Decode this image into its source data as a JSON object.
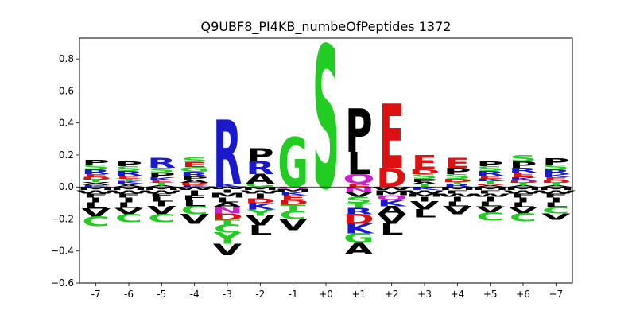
{
  "chart_data": {
    "type": "sequence-logo",
    "title": "Q9UBF8_PI4KB_numbeOfPeptides 1372",
    "xlabel": "",
    "ylabel": "",
    "ylim": [
      -0.6,
      0.93
    ],
    "yticks": [
      "0.8",
      "0.6",
      "0.4",
      "0.2",
      "0.0",
      "−0.2",
      "−0.4",
      "−0.6"
    ],
    "ytick_values": [
      0.8,
      0.6,
      0.4,
      0.2,
      0.0,
      -0.2,
      -0.4,
      -0.6
    ],
    "categories": [
      "-7",
      "-6",
      "-5",
      "-4",
      "-3",
      "-2",
      "-1",
      "+0",
      "+1",
      "+2",
      "+3",
      "+4",
      "+5",
      "+6",
      "+7"
    ],
    "grid": false,
    "colors": {
      "S": "#22cc22",
      "T": "#22cc22",
      "G": "#22cc22",
      "Y": "#22cc22",
      "C": "#22cc22",
      "R": "#1a1acc",
      "K": "#1a1acc",
      "H": "#1a1acc",
      "E": "#dd1111",
      "D": "#dd1111",
      "Q": "#cc22cc",
      "N": "#cc22cc",
      "P": "#000000",
      "A": "#000000",
      "V": "#000000",
      "L": "#000000",
      "I": "#000000",
      "M": "#000000",
      "F": "#000000",
      "W": "#000000",
      "axis": "#000000"
    },
    "positions": [
      {
        "label": "-7",
        "positive": [
          [
            "K",
            0.01
          ],
          [
            "A",
            0.01
          ],
          [
            "V",
            0.01
          ],
          [
            "T",
            0.015
          ],
          [
            "D",
            0.015
          ],
          [
            "E",
            0.02
          ],
          [
            "R",
            0.03
          ],
          [
            "S",
            0.03
          ],
          [
            "P",
            0.03
          ]
        ],
        "negative": [
          [
            "M",
            0.02
          ],
          [
            "W",
            0.02
          ],
          [
            "F",
            0.025
          ],
          [
            "I",
            0.03
          ],
          [
            "L",
            0.04
          ],
          [
            "V",
            0.05
          ],
          [
            "C",
            0.06
          ]
        ]
      },
      {
        "label": "-6",
        "positive": [
          [
            "A",
            0.01
          ],
          [
            "V",
            0.01
          ],
          [
            "K",
            0.015
          ],
          [
            "T",
            0.015
          ],
          [
            "E",
            0.02
          ],
          [
            "R",
            0.03
          ],
          [
            "S",
            0.03
          ],
          [
            "P",
            0.03
          ]
        ],
        "negative": [
          [
            "M",
            0.02
          ],
          [
            "W",
            0.02
          ],
          [
            "F",
            0.025
          ],
          [
            "I",
            0.03
          ],
          [
            "L",
            0.035
          ],
          [
            "V",
            0.04
          ],
          [
            "C",
            0.05
          ]
        ]
      },
      {
        "label": "-5",
        "positive": [
          [
            "A",
            0.01
          ],
          [
            "T",
            0.015
          ],
          [
            "E",
            0.015
          ],
          [
            "K",
            0.02
          ],
          [
            "P",
            0.03
          ],
          [
            "S",
            0.03
          ],
          [
            "R",
            0.06
          ]
        ],
        "negative": [
          [
            "M",
            0.02
          ],
          [
            "W",
            0.02
          ],
          [
            "F",
            0.02
          ],
          [
            "L",
            0.03
          ],
          [
            "I",
            0.03
          ],
          [
            "V",
            0.05
          ],
          [
            "C",
            0.05
          ]
        ]
      },
      {
        "label": "-4",
        "positive": [
          [
            "K",
            0.01
          ],
          [
            "D",
            0.015
          ],
          [
            "A",
            0.02
          ],
          [
            "P",
            0.02
          ],
          [
            "R",
            0.03
          ],
          [
            "G",
            0.03
          ],
          [
            "E",
            0.03
          ],
          [
            "S",
            0.03
          ]
        ],
        "negative": [
          [
            "W",
            0.02
          ],
          [
            "I",
            0.03
          ],
          [
            "F",
            0.03
          ],
          [
            "L",
            0.04
          ],
          [
            "C",
            0.05
          ],
          [
            "V",
            0.06
          ]
        ]
      },
      {
        "label": "-3",
        "positive": [
          [
            "K",
            0.02
          ],
          [
            "R",
            0.4
          ]
        ],
        "negative": [
          [
            "W",
            0.015
          ],
          [
            "I",
            0.02
          ],
          [
            "M",
            0.03
          ],
          [
            "L",
            0.03
          ],
          [
            "A",
            0.03
          ],
          [
            "N",
            0.04
          ],
          [
            "D",
            0.04
          ],
          [
            "T",
            0.03
          ],
          [
            "C",
            0.05
          ],
          [
            "Y",
            0.07
          ],
          [
            "V",
            0.07
          ]
        ]
      },
      {
        "label": "-2",
        "positive": [
          [
            "G",
            0.02
          ],
          [
            "A",
            0.06
          ],
          [
            "R",
            0.08
          ],
          [
            "P",
            0.08
          ]
        ],
        "negative": [
          [
            "M",
            0.02
          ],
          [
            "W",
            0.02
          ],
          [
            "I",
            0.03
          ],
          [
            "D",
            0.03
          ],
          [
            "K",
            0.04
          ],
          [
            "Y",
            0.04
          ],
          [
            "V",
            0.06
          ],
          [
            "L",
            0.06
          ]
        ]
      },
      {
        "label": "-1",
        "positive": [
          [
            "G",
            0.31
          ]
        ],
        "negative": [
          [
            "Q",
            0.01
          ],
          [
            "M",
            0.02
          ],
          [
            "K",
            0.02
          ],
          [
            "E",
            0.03
          ],
          [
            "D",
            0.03
          ],
          [
            "T",
            0.04
          ],
          [
            "C",
            0.05
          ],
          [
            "V",
            0.07
          ]
        ]
      },
      {
        "label": "+0",
        "positive": [
          [
            "S",
            0.89
          ]
        ],
        "negative": []
      },
      {
        "label": "+1",
        "positive": [
          [
            "E",
            0.02
          ],
          [
            "Q",
            0.06
          ],
          [
            "L",
            0.14
          ],
          [
            "P",
            0.27
          ]
        ],
        "negative": [
          [
            "N",
            0.03
          ],
          [
            "V",
            0.03
          ],
          [
            "S",
            0.04
          ],
          [
            "T",
            0.03
          ],
          [
            "R",
            0.04
          ],
          [
            "D",
            0.06
          ],
          [
            "K",
            0.06
          ],
          [
            "G",
            0.06
          ],
          [
            "A",
            0.07
          ]
        ]
      },
      {
        "label": "+2",
        "positive": [
          [
            "D",
            0.12
          ],
          [
            "E",
            0.4
          ]
        ],
        "negative": [
          [
            "W",
            0.02
          ],
          [
            "M",
            0.03
          ],
          [
            "Q",
            0.03
          ],
          [
            "K",
            0.04
          ],
          [
            "A",
            0.05
          ],
          [
            "V",
            0.06
          ],
          [
            "L",
            0.07
          ]
        ]
      },
      {
        "label": "+3",
        "positive": [
          [
            "T",
            0.015
          ],
          [
            "A",
            0.015
          ],
          [
            "P",
            0.02
          ],
          [
            "S",
            0.03
          ],
          [
            "D",
            0.03
          ],
          [
            "E",
            0.09
          ]
        ],
        "negative": [
          [
            "K",
            0.02
          ],
          [
            "W",
            0.02
          ],
          [
            "M",
            0.02
          ],
          [
            "I",
            0.03
          ],
          [
            "V",
            0.05
          ],
          [
            "L",
            0.05
          ]
        ]
      },
      {
        "label": "+4",
        "positive": [
          [
            "R",
            0.015
          ],
          [
            "T",
            0.015
          ],
          [
            "D",
            0.02
          ],
          [
            "S",
            0.03
          ],
          [
            "P",
            0.04
          ],
          [
            "E",
            0.06
          ]
        ],
        "negative": [
          [
            "M",
            0.02
          ],
          [
            "F",
            0.02
          ],
          [
            "W",
            0.02
          ],
          [
            "I",
            0.03
          ],
          [
            "L",
            0.03
          ],
          [
            "V",
            0.05
          ]
        ]
      },
      {
        "label": "+5",
        "positive": [
          [
            "A",
            0.01
          ],
          [
            "D",
            0.01
          ],
          [
            "T",
            0.015
          ],
          [
            "K",
            0.015
          ],
          [
            "E",
            0.02
          ],
          [
            "R",
            0.03
          ],
          [
            "S",
            0.03
          ],
          [
            "P",
            0.03
          ]
        ],
        "negative": [
          [
            "M",
            0.02
          ],
          [
            "F",
            0.02
          ],
          [
            "W",
            0.02
          ],
          [
            "I",
            0.03
          ],
          [
            "L",
            0.03
          ],
          [
            "V",
            0.04
          ],
          [
            "C",
            0.05
          ]
        ]
      },
      {
        "label": "+6",
        "positive": [
          [
            "A",
            0.01
          ],
          [
            "T",
            0.015
          ],
          [
            "D",
            0.015
          ],
          [
            "K",
            0.02
          ],
          [
            "E",
            0.03
          ],
          [
            "R",
            0.03
          ],
          [
            "P",
            0.04
          ],
          [
            "S",
            0.04
          ]
        ],
        "negative": [
          [
            "M",
            0.02
          ],
          [
            "W",
            0.02
          ],
          [
            "F",
            0.025
          ],
          [
            "I",
            0.03
          ],
          [
            "L",
            0.03
          ],
          [
            "V",
            0.04
          ],
          [
            "C",
            0.05
          ]
        ]
      },
      {
        "label": "+7",
        "positive": [
          [
            "A",
            0.01
          ],
          [
            "T",
            0.015
          ],
          [
            "D",
            0.015
          ],
          [
            "E",
            0.02
          ],
          [
            "K",
            0.02
          ],
          [
            "R",
            0.03
          ],
          [
            "S",
            0.03
          ],
          [
            "P",
            0.04
          ]
        ],
        "negative": [
          [
            "M",
            0.02
          ],
          [
            "W",
            0.02
          ],
          [
            "F",
            0.025
          ],
          [
            "I",
            0.03
          ],
          [
            "L",
            0.03
          ],
          [
            "C",
            0.04
          ],
          [
            "V",
            0.04
          ]
        ]
      }
    ]
  }
}
